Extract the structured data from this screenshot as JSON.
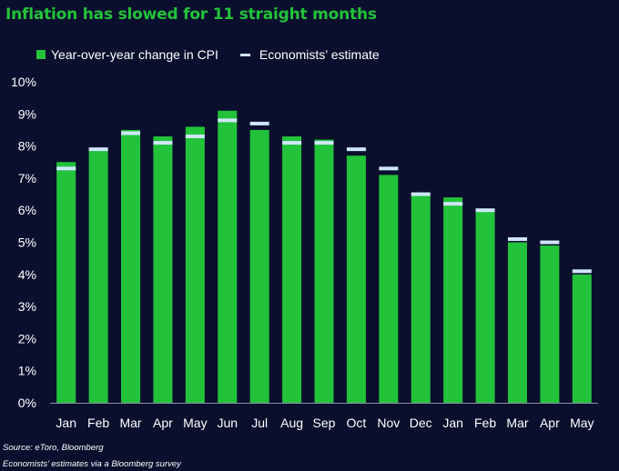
{
  "title": "Inflation has slowed for 11 straight months",
  "legend": {
    "cpi": "Year-over-year change in CPI",
    "estimate": "Economists’ estimate"
  },
  "colors": {
    "background": "#0b0f2e",
    "bar": "#22c33a",
    "estimate": "#cfe6ff",
    "axis": "#8a8fa8"
  },
  "chart_data": {
    "type": "bar",
    "title": "Inflation has slowed for 11 straight months",
    "categories": [
      "Jan",
      "Feb",
      "Mar",
      "Apr",
      "May",
      "Jun",
      "Jul",
      "Aug",
      "Sep",
      "Oct",
      "Nov",
      "Dec",
      "Jan",
      "Feb",
      "Mar",
      "Apr",
      "May"
    ],
    "series": [
      {
        "name": "Year-over-year change in CPI",
        "values": [
          7.5,
          7.9,
          8.5,
          8.3,
          8.6,
          9.1,
          8.5,
          8.3,
          8.2,
          7.7,
          7.1,
          6.5,
          6.4,
          6.0,
          5.0,
          4.9,
          4.0
        ]
      },
      {
        "name": "Economists’ estimate",
        "values": [
          7.3,
          7.9,
          8.4,
          8.1,
          8.3,
          8.8,
          8.7,
          8.1,
          8.1,
          7.9,
          7.3,
          6.5,
          6.2,
          6.0,
          5.1,
          5.0,
          4.1
        ]
      }
    ],
    "ylim": [
      0,
      10
    ],
    "yticks": [
      "0%",
      "1%",
      "2%",
      "3%",
      "4%",
      "5%",
      "6%",
      "7%",
      "8%",
      "9%",
      "10%"
    ],
    "legend_position": "top-left",
    "grid": false
  },
  "footnotes": {
    "source": "Source: eToro, Bloomberg",
    "note": "Economists’ estimates via a Bloomberg survey"
  }
}
